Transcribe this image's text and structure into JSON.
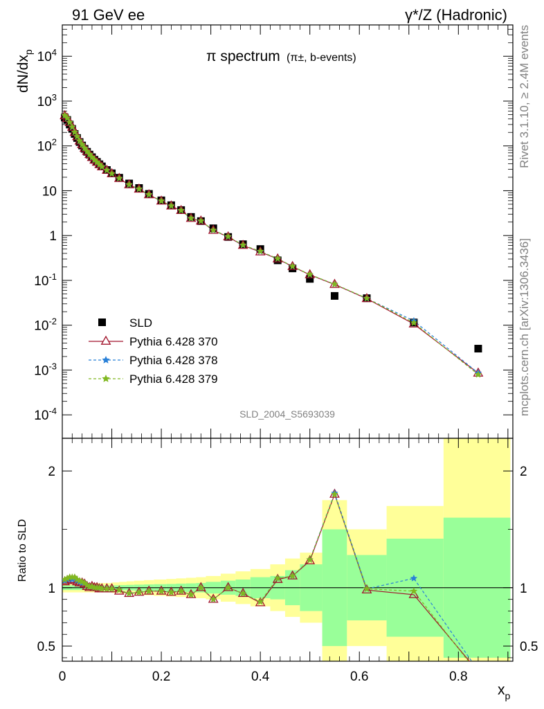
{
  "header": {
    "left": "91 GeV ee",
    "right": "γ*/Z (Hadronic)"
  },
  "side_labels": {
    "rivet": "Rivet 3.1.10, ≥ 2.4M events",
    "mcplots": "mcplots.cern.ch [arXiv:1306.3436]"
  },
  "chart_data": [
    {
      "type": "scatter",
      "title": "π spectrum",
      "subtitle": "(π±, b-events)",
      "analysis_id": "SLD_2004_S5693039",
      "xlabel": "x_p",
      "ylabel": "dN/dx_p",
      "xlim": [
        0,
        0.91
      ],
      "ylim": [
        3e-05,
        50000
      ],
      "yscale": "log",
      "y_tick_labels": [
        "10^-4",
        "10^-3",
        "10^-2",
        "10^-1",
        "1",
        "10",
        "10^2",
        "10^3",
        "10^4"
      ],
      "legend_position": "bottom-left",
      "legend": [
        "SLD",
        "Pythia 6.428 370",
        "Pythia 6.428 378",
        "Pythia 6.428 379"
      ],
      "colors": {
        "SLD": "#000000",
        "p370": "#a0122a",
        "p378": "#2880d8",
        "p379": "#80b820"
      },
      "x": [
        0.005,
        0.01,
        0.015,
        0.02,
        0.025,
        0.03,
        0.035,
        0.04,
        0.045,
        0.05,
        0.055,
        0.06,
        0.065,
        0.07,
        0.075,
        0.08,
        0.09,
        0.1,
        0.115,
        0.135,
        0.155,
        0.175,
        0.2,
        0.22,
        0.24,
        0.26,
        0.28,
        0.305,
        0.335,
        0.365,
        0.4,
        0.435,
        0.465,
        0.5,
        0.55,
        0.615,
        0.71,
        0.84
      ],
      "series": [
        {
          "name": "SLD",
          "values": [
            430,
            380,
            300,
            240,
            185,
            150,
            122,
            102,
            86,
            74,
            64,
            56,
            49,
            44,
            39,
            35,
            29,
            24.5,
            19.5,
            14.5,
            11.5,
            8.5,
            6.1,
            4.75,
            3.7,
            2.6,
            2.1,
            1.45,
            0.93,
            0.64,
            0.5,
            0.28,
            0.185,
            0.108,
            0.045,
            0.04,
            0.0115,
            0.003
          ]
        },
        {
          "name": "Pythia 6.428 370",
          "values": [
            470,
            410,
            330,
            260,
            200,
            160,
            128,
            106,
            88,
            75,
            64,
            55,
            48,
            43,
            38,
            34,
            28.5,
            23.8,
            18.7,
            13.5,
            10.8,
            8.1,
            5.85,
            4.55,
            3.6,
            2.4,
            2.1,
            1.3,
            0.93,
            0.6,
            0.43,
            0.3,
            0.203,
            0.133,
            0.081,
            0.039,
            0.0106,
            0.00085
          ]
        },
        {
          "name": "Pythia 6.428 378",
          "values": [
            475,
            415,
            333,
            262,
            202,
            161,
            129,
            107,
            89,
            75.5,
            64.5,
            55.5,
            48.5,
            43.2,
            38.2,
            34.2,
            28.6,
            23.9,
            18.8,
            13.6,
            10.9,
            8.15,
            5.9,
            4.58,
            3.62,
            2.42,
            2.11,
            1.31,
            0.94,
            0.61,
            0.44,
            0.305,
            0.205,
            0.134,
            0.082,
            0.0395,
            0.0125,
            0.00086
          ]
        },
        {
          "name": "Pythia 6.428 379",
          "values": [
            480,
            418,
            335,
            264,
            203,
            162,
            130,
            107.5,
            89.5,
            76,
            65,
            56,
            49,
            43.5,
            38.5,
            34.3,
            28.7,
            24,
            18.9,
            13.7,
            10.95,
            8.2,
            5.92,
            4.6,
            3.63,
            2.43,
            2.12,
            1.32,
            0.95,
            0.615,
            0.445,
            0.306,
            0.206,
            0.135,
            0.082,
            0.0398,
            0.0113,
            0.00079
          ]
        }
      ]
    },
    {
      "type": "line",
      "ylabel": "Ratio to SLD",
      "xlabel": "x_p",
      "xlim": [
        0,
        0.91
      ],
      "ylim": [
        0.37,
        2.28
      ],
      "x_tick_labels": [
        "0",
        "0.2",
        "0.4",
        "0.6",
        "0.8"
      ],
      "y_tick_labels": [
        "0.5",
        "1",
        "2"
      ],
      "reference_line": 1,
      "band_colors": {
        "stat": "#99ff99",
        "total": "#ffff99"
      },
      "band_edges": [
        0,
        0.1,
        0.115,
        0.13,
        0.145,
        0.165,
        0.185,
        0.21,
        0.23,
        0.25,
        0.27,
        0.29,
        0.32,
        0.35,
        0.38,
        0.42,
        0.45,
        0.48,
        0.525,
        0.575,
        0.655,
        0.77,
        0.905
      ],
      "band_stat": [
        0.02,
        0.02,
        0.022,
        0.024,
        0.026,
        0.028,
        0.03,
        0.032,
        0.035,
        0.037,
        0.04,
        0.05,
        0.06,
        0.07,
        0.09,
        0.1,
        0.15,
        0.2,
        0.5,
        0.28,
        0.42,
        0.6
      ],
      "band_total": [
        0.04,
        0.045,
        0.05,
        0.055,
        0.06,
        0.065,
        0.07,
        0.075,
        0.08,
        0.085,
        0.09,
        0.1,
        0.12,
        0.14,
        0.16,
        0.2,
        0.25,
        0.3,
        0.75,
        0.5,
        0.7,
        1.5
      ],
      "x": [
        0.005,
        0.01,
        0.015,
        0.02,
        0.025,
        0.03,
        0.035,
        0.04,
        0.045,
        0.05,
        0.055,
        0.06,
        0.065,
        0.07,
        0.075,
        0.08,
        0.09,
        0.1,
        0.115,
        0.135,
        0.155,
        0.175,
        0.2,
        0.22,
        0.24,
        0.26,
        0.28,
        0.305,
        0.335,
        0.365,
        0.4,
        0.435,
        0.465,
        0.5,
        0.55,
        0.615,
        0.71,
        0.84
      ],
      "series": [
        {
          "name": "Pythia 6.428 370",
          "values": [
            1.05,
            1.06,
            1.07,
            1.06,
            1.07,
            1.05,
            1.04,
            1.04,
            1.03,
            1.01,
            1.0,
            1.01,
            1.0,
            1.0,
            0.99,
            0.99,
            0.99,
            0.99,
            0.97,
            0.95,
            0.96,
            0.97,
            0.97,
            0.96,
            0.97,
            0.94,
            1.0,
            0.9,
            1.0,
            0.95,
            0.87,
            1.07,
            1.1,
            1.23,
            1.8,
            0.98,
            0.94,
            0.28
          ]
        },
        {
          "name": "Pythia 6.428 378",
          "values": [
            1.06,
            1.07,
            1.08,
            1.07,
            1.08,
            1.06,
            1.05,
            1.04,
            1.04,
            1.02,
            1.01,
            1.01,
            1.0,
            1.0,
            1.0,
            0.99,
            0.99,
            0.99,
            0.98,
            0.95,
            0.96,
            0.97,
            0.97,
            0.96,
            0.97,
            0.94,
            1.0,
            0.9,
            1.0,
            0.95,
            0.88,
            1.08,
            1.1,
            1.24,
            1.81,
            0.99,
            1.08,
            0.29
          ]
        },
        {
          "name": "Pythia 6.428 379",
          "values": [
            1.07,
            1.08,
            1.09,
            1.09,
            1.09,
            1.07,
            1.06,
            1.05,
            1.04,
            1.02,
            1.01,
            1.01,
            1.0,
            1.0,
            1.0,
            0.99,
            0.99,
            0.99,
            0.98,
            0.95,
            0.96,
            0.97,
            0.97,
            0.96,
            0.97,
            0.94,
            1.0,
            0.9,
            1.0,
            0.95,
            0.88,
            1.08,
            1.1,
            1.24,
            1.8,
            0.99,
            0.97,
            0.26
          ]
        }
      ]
    }
  ]
}
